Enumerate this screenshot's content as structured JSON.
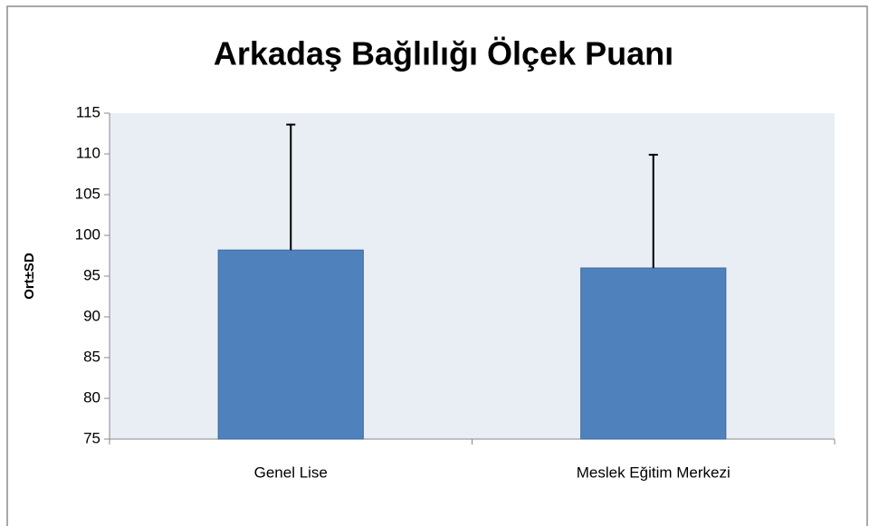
{
  "chart_data": {
    "type": "bar",
    "title": "Arkadaş Bağlılığı Ölçek Puanı",
    "y_label": "Ort±SD",
    "categories": [
      "Genel Lise",
      "Meslek Eğitim Merkezi"
    ],
    "values": [
      98.2,
      96.0
    ],
    "errors": [
      15.4,
      13.9
    ],
    "color": "#4f81bd",
    "ylim": [
      75,
      115
    ],
    "yticks": [
      75,
      80,
      85,
      90,
      95,
      100,
      105,
      110,
      115
    ],
    "grid": false
  }
}
